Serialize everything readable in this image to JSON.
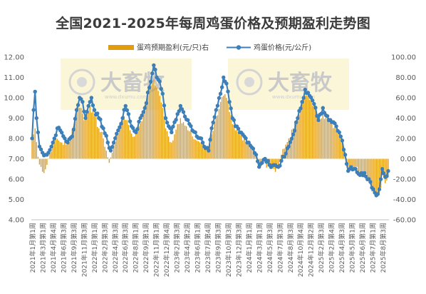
{
  "chart_data": {
    "type": "bar+line",
    "title": "全国2021-2025年每周鸡蛋价格及预期盈利走势图",
    "legend": [
      "蛋鸡预期盈利(元/只)右",
      "鸡蛋价格(元/公斤)"
    ],
    "legend_position": "top-center",
    "grid": false,
    "y_left": {
      "min": 4,
      "max": 12,
      "step": 1,
      "ticks": [
        "4.00",
        "5.00",
        "6.00",
        "7.00",
        "8.00",
        "9.00",
        "10.00",
        "11.00",
        "12.00"
      ]
    },
    "y_right": {
      "min": -60,
      "max": 100,
      "step": 20,
      "ticks": [
        "-60.00",
        "-40.00",
        "-20.00",
        "0.00",
        "20.00",
        "40.00",
        "60.00",
        "80.00",
        "100.00"
      ]
    },
    "x_labels": [
      "2021年1月第1周",
      "2021年3月第1周",
      "2021年4月第4周",
      "2021年6月第3周",
      "2021年9月第3周",
      "2021年11月第3周",
      "2022年1月第1周",
      "2022年2月第3周",
      "2022年4月第3周",
      "2022年6月第3周",
      "2022年8月第1周",
      "2022年9月第1周",
      "2022年11月第1周",
      "2022年12月第4周",
      "2023年2月第3周",
      "2023年4月第2周",
      "2023年6月第1周",
      "2023年7月第4周",
      "2023年9月第3周",
      "2023年10月第3周",
      "2023年12月第3周",
      "2024年1月第1周",
      "2024年3月第1周",
      "2024年5月第3周",
      "2024年7月第3周",
      "2024年8月第3周",
      "2024年10月第4周",
      "2024年12月第2周",
      "2025年2月第3周",
      "2025年2月第4周",
      "2025年4月第3周",
      "2025年5月第1周",
      "2025年6月第1周",
      "2025年7月第1周",
      "2025年8月第3周"
    ],
    "series": [
      {
        "name": "鸡蛋价格(元/公斤)",
        "axis": "left",
        "color": "#3d7fb8",
        "anchors": [
          [
            0,
            8.0
          ],
          [
            1,
            9.4
          ],
          [
            2,
            10.3
          ],
          [
            3,
            9.0
          ],
          [
            5,
            7.6
          ],
          [
            7,
            7.3
          ],
          [
            9,
            7.2
          ],
          [
            11,
            7.3
          ],
          [
            13,
            7.6
          ],
          [
            15,
            8.0
          ],
          [
            17,
            8.5
          ],
          [
            19,
            8.4
          ],
          [
            22,
            8.0
          ],
          [
            24,
            7.8
          ],
          [
            27,
            8.1
          ],
          [
            30,
            9.4
          ],
          [
            32,
            10.0
          ],
          [
            34,
            9.8
          ],
          [
            36,
            9.0
          ],
          [
            38,
            9.6
          ],
          [
            40,
            10.0
          ],
          [
            42,
            9.4
          ],
          [
            45,
            9.0
          ],
          [
            48,
            8.5
          ],
          [
            51,
            7.8
          ],
          [
            53,
            7.4
          ],
          [
            55,
            7.8
          ],
          [
            58,
            8.4
          ],
          [
            61,
            9.0
          ],
          [
            63,
            9.6
          ],
          [
            65,
            9.2
          ],
          [
            67,
            8.6
          ],
          [
            70,
            8.3
          ],
          [
            73,
            9.0
          ],
          [
            76,
            9.5
          ],
          [
            79,
            10.5
          ],
          [
            81,
            11.2
          ],
          [
            82,
            11.6
          ],
          [
            84,
            11.0
          ],
          [
            86,
            10.8
          ],
          [
            88,
            10.2
          ],
          [
            90,
            9.0
          ],
          [
            92,
            8.6
          ],
          [
            94,
            8.3
          ],
          [
            96,
            8.8
          ],
          [
            98,
            9.2
          ],
          [
            100,
            9.6
          ],
          [
            102,
            9.3
          ],
          [
            105,
            8.9
          ],
          [
            108,
            8.4
          ],
          [
            111,
            8.1
          ],
          [
            114,
            8.0
          ],
          [
            116,
            7.6
          ],
          [
            119,
            7.4
          ],
          [
            121,
            8.5
          ],
          [
            124,
            9.4
          ],
          [
            127,
            10.2
          ],
          [
            129,
            11.0
          ],
          [
            131,
            10.7
          ],
          [
            133,
            9.8
          ],
          [
            135,
            9.0
          ],
          [
            137,
            8.6
          ],
          [
            140,
            8.3
          ],
          [
            143,
            8.1
          ],
          [
            146,
            7.8
          ],
          [
            149,
            7.5
          ],
          [
            151,
            7.2
          ],
          [
            153,
            6.6
          ],
          [
            155,
            6.8
          ],
          [
            157,
            7.0
          ],
          [
            160,
            6.7
          ],
          [
            163,
            6.7
          ],
          [
            166,
            6.6
          ],
          [
            168,
            6.9
          ],
          [
            170,
            7.1
          ],
          [
            173,
            7.6
          ],
          [
            176,
            8.2
          ],
          [
            179,
            9.0
          ],
          [
            182,
            9.8
          ],
          [
            184,
            10.4
          ],
          [
            187,
            10.1
          ],
          [
            190,
            9.7
          ],
          [
            193,
            8.9
          ],
          [
            196,
            9.5
          ],
          [
            199,
            9.1
          ],
          [
            202,
            8.8
          ],
          [
            205,
            8.6
          ],
          [
            207,
            8.3
          ],
          [
            209,
            7.9
          ],
          [
            211,
            7.2
          ],
          [
            213,
            6.4
          ],
          [
            215,
            6.6
          ],
          [
            218,
            6.5
          ],
          [
            221,
            6.2
          ],
          [
            224,
            6.3
          ],
          [
            227,
            6.0
          ],
          [
            230,
            5.5
          ],
          [
            232,
            5.2
          ],
          [
            234,
            5.5
          ],
          [
            236,
            6.5
          ],
          [
            238,
            6.1
          ],
          [
            240,
            6.4
          ]
        ]
      },
      {
        "name": "蛋鸡预期盈利(元/只)右",
        "axis": "right",
        "color": "#e39c0e",
        "anchors": [
          [
            0,
            18
          ],
          [
            2,
            30
          ],
          [
            4,
            2
          ],
          [
            6,
            -8
          ],
          [
            8,
            -14
          ],
          [
            10,
            -6
          ],
          [
            12,
            6
          ],
          [
            14,
            14
          ],
          [
            16,
            20
          ],
          [
            18,
            18
          ],
          [
            20,
            16
          ],
          [
            23,
            14
          ],
          [
            26,
            22
          ],
          [
            29,
            40
          ],
          [
            31,
            55
          ],
          [
            33,
            50
          ],
          [
            35,
            38
          ],
          [
            37,
            44
          ],
          [
            39,
            52
          ],
          [
            42,
            42
          ],
          [
            45,
            30
          ],
          [
            48,
            20
          ],
          [
            50,
            8
          ],
          [
            52,
            -4
          ],
          [
            54,
            6
          ],
          [
            57,
            24
          ],
          [
            60,
            34
          ],
          [
            62,
            42
          ],
          [
            64,
            38
          ],
          [
            66,
            28
          ],
          [
            69,
            22
          ],
          [
            72,
            32
          ],
          [
            75,
            44
          ],
          [
            78,
            62
          ],
          [
            80,
            72
          ],
          [
            82,
            78
          ],
          [
            84,
            70
          ],
          [
            86,
            62
          ],
          [
            88,
            50
          ],
          [
            90,
            30
          ],
          [
            92,
            22
          ],
          [
            94,
            16
          ],
          [
            96,
            24
          ],
          [
            98,
            34
          ],
          [
            100,
            40
          ],
          [
            102,
            36
          ],
          [
            105,
            28
          ],
          [
            108,
            22
          ],
          [
            111,
            18
          ],
          [
            114,
            16
          ],
          [
            116,
            12
          ],
          [
            119,
            8
          ],
          [
            121,
            24
          ],
          [
            124,
            40
          ],
          [
            127,
            56
          ],
          [
            129,
            62
          ],
          [
            131,
            60
          ],
          [
            133,
            46
          ],
          [
            135,
            34
          ],
          [
            137,
            28
          ],
          [
            140,
            24
          ],
          [
            143,
            20
          ],
          [
            146,
            14
          ],
          [
            149,
            8
          ],
          [
            151,
            2
          ],
          [
            153,
            -8
          ],
          [
            155,
            -6
          ],
          [
            157,
            -4
          ],
          [
            160,
            -8
          ],
          [
            163,
            -10
          ],
          [
            166,
            -10
          ],
          [
            168,
            4
          ],
          [
            170,
            10
          ],
          [
            173,
            20
          ],
          [
            176,
            30
          ],
          [
            179,
            42
          ],
          [
            182,
            56
          ],
          [
            184,
            62
          ],
          [
            187,
            58
          ],
          [
            190,
            52
          ],
          [
            193,
            40
          ],
          [
            196,
            44
          ],
          [
            199,
            40
          ],
          [
            202,
            34
          ],
          [
            205,
            30
          ],
          [
            207,
            26
          ],
          [
            209,
            18
          ],
          [
            211,
            4
          ],
          [
            213,
            -8
          ],
          [
            215,
            -6
          ],
          [
            218,
            -8
          ],
          [
            221,
            -14
          ],
          [
            224,
            -14
          ],
          [
            227,
            -20
          ],
          [
            230,
            -34
          ],
          [
            232,
            -38
          ],
          [
            234,
            -34
          ],
          [
            236,
            -16
          ],
          [
            238,
            -24
          ],
          [
            240,
            -18
          ]
        ]
      }
    ],
    "watermark": {
      "brand": "大畜牧",
      "url": "www.dxumu.com"
    }
  }
}
